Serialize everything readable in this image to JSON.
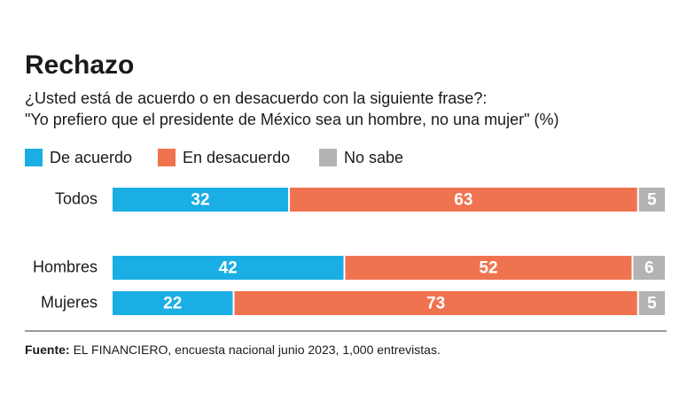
{
  "chart_data": {
    "type": "stacked_barh",
    "title": "Rechazo",
    "subtitle": [
      "¿Usted está de acuerdo o en desacuerdo con la siguiente frase?:",
      "\"Yo prefiero que el presidente de México sea un hombre, no una mujer\" (%)"
    ],
    "categories": [
      "Todos",
      "Hombres",
      "Mujeres"
    ],
    "series": [
      {
        "name": "De acuerdo",
        "color": "#1aaee5",
        "values": [
          32,
          42,
          22
        ]
      },
      {
        "name": "En desacuerdo",
        "color": "#f07350",
        "values": [
          63,
          52,
          73
        ]
      },
      {
        "name": "No sabe",
        "color": "#b3b3b3",
        "values": [
          5,
          6,
          5
        ]
      }
    ],
    "xlim": [
      0,
      100
    ],
    "source_label": "Fuente:",
    "source": "EL FINANCIERO, encuesta nacional junio 2023, 1,000 entrevistas."
  }
}
